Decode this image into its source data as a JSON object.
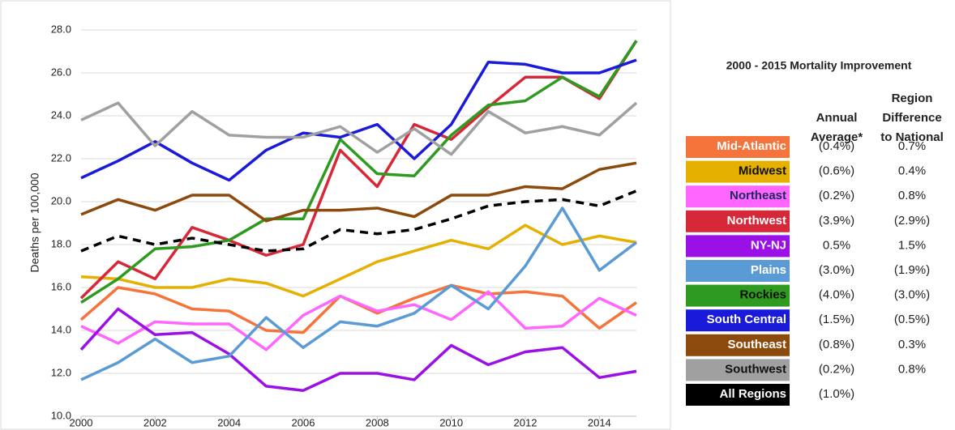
{
  "chart_data": {
    "type": "line",
    "y_label": "Deaths per 100,000",
    "x": [
      2000,
      2001,
      2002,
      2003,
      2004,
      2005,
      2006,
      2007,
      2008,
      2009,
      2010,
      2011,
      2012,
      2013,
      2014,
      2015
    ],
    "xlim": [
      2000,
      2015
    ],
    "xticks": [
      2000,
      2002,
      2004,
      2006,
      2008,
      2010,
      2012,
      2014
    ],
    "ylim": [
      10,
      28
    ],
    "yticks": [
      {
        "value": 10,
        "label": "10.0"
      },
      {
        "value": 12,
        "label": "12.0"
      },
      {
        "value": 14,
        "label": "14.0"
      },
      {
        "value": 16,
        "label": "16.0"
      },
      {
        "value": 18,
        "label": "18.0"
      },
      {
        "value": 20,
        "label": "20.0"
      },
      {
        "value": 22,
        "label": "22.0"
      },
      {
        "value": 24,
        "label": "24.0"
      },
      {
        "value": 26,
        "label": "26.0"
      },
      {
        "value": 28,
        "label": "28.0"
      }
    ],
    "grid": true,
    "series": [
      {
        "name": "Mid-Atlantic",
        "color": "#f4743b",
        "values": [
          14.5,
          16.0,
          15.7,
          15.0,
          14.9,
          14.0,
          13.9,
          15.6,
          14.8,
          15.5,
          16.1,
          15.7,
          15.8,
          15.6,
          14.1,
          15.3
        ]
      },
      {
        "name": "Midwest",
        "color": "#e6b000",
        "values": [
          16.5,
          16.4,
          16.0,
          16.0,
          16.4,
          16.2,
          15.6,
          16.4,
          17.2,
          17.7,
          18.2,
          17.8,
          18.9,
          18.0,
          18.4,
          18.1
        ]
      },
      {
        "name": "Northeast",
        "color": "#ff66ff",
        "values": [
          14.2,
          13.4,
          14.4,
          14.3,
          14.3,
          13.1,
          14.7,
          15.6,
          14.9,
          15.2,
          14.5,
          15.8,
          14.1,
          14.2,
          15.5,
          14.7
        ]
      },
      {
        "name": "Northwest",
        "color": "#d62839",
        "values": [
          15.5,
          17.2,
          16.4,
          18.8,
          18.2,
          17.5,
          18.0,
          22.4,
          20.7,
          23.6,
          22.9,
          24.4,
          25.8,
          25.8,
          24.8,
          27.5
        ]
      },
      {
        "name": "NY-NJ",
        "color": "#9b10e6",
        "values": [
          13.1,
          15.0,
          13.8,
          13.9,
          12.9,
          11.4,
          11.2,
          12.0,
          12.0,
          11.7,
          13.3,
          12.4,
          13.0,
          13.2,
          11.8,
          12.1
        ]
      },
      {
        "name": "Plains",
        "color": "#5b9bd5",
        "values": [
          11.7,
          12.5,
          13.6,
          12.5,
          12.8,
          14.6,
          13.2,
          14.4,
          14.2,
          14.8,
          16.1,
          15.0,
          17.0,
          19.7,
          16.8,
          18.1
        ]
      },
      {
        "name": "Rockies",
        "color": "#2e9a1f",
        "values": [
          15.3,
          16.4,
          17.8,
          17.9,
          18.2,
          19.2,
          19.2,
          22.9,
          21.3,
          21.2,
          23.1,
          24.5,
          24.7,
          25.8,
          24.9,
          27.5
        ]
      },
      {
        "name": "South Central",
        "color": "#1a1adb",
        "values": [
          21.1,
          21.9,
          22.8,
          21.8,
          21.0,
          22.4,
          23.2,
          23.0,
          23.6,
          22.0,
          23.6,
          26.5,
          26.4,
          26.0,
          26.0,
          26.6
        ]
      },
      {
        "name": "Southeast",
        "color": "#8c4a0c",
        "values": [
          19.4,
          20.1,
          19.6,
          20.3,
          20.3,
          19.1,
          19.6,
          19.6,
          19.7,
          19.3,
          20.3,
          20.3,
          20.7,
          20.6,
          21.5,
          21.8
        ]
      },
      {
        "name": "Southwest",
        "color": "#a0a0a0",
        "values": [
          23.8,
          24.6,
          22.6,
          24.2,
          23.1,
          23.0,
          23.0,
          23.5,
          22.3,
          23.4,
          22.2,
          24.2,
          23.2,
          23.5,
          23.1,
          24.6
        ]
      },
      {
        "name": "All Regions",
        "color": "#000000",
        "dashed": true,
        "values": [
          17.7,
          18.4,
          18.0,
          18.3,
          18.0,
          17.7,
          17.8,
          18.7,
          18.5,
          18.7,
          19.2,
          19.8,
          20.0,
          20.1,
          19.8,
          20.5
        ]
      }
    ]
  },
  "table": {
    "title": "2000 - 2015 Mortality Improvement",
    "columns": [
      [
        "Annual",
        "Average*"
      ],
      [
        "Region",
        "Difference",
        "to National"
      ]
    ],
    "rows": [
      {
        "annual": "(0.4%)",
        "difference": "0.7%"
      },
      {
        "annual": "(0.6%)",
        "difference": "0.4%"
      },
      {
        "annual": "(0.2%)",
        "difference": "0.8%"
      },
      {
        "annual": "(3.9%)",
        "difference": "(2.9%)"
      },
      {
        "annual": "0.5%",
        "difference": "1.5%"
      },
      {
        "annual": "(3.0%)",
        "difference": "(1.9%)"
      },
      {
        "annual": "(4.0%)",
        "difference": "(3.0%)"
      },
      {
        "annual": "(1.5%)",
        "difference": "(0.5%)"
      },
      {
        "annual": "(0.8%)",
        "difference": "0.3%"
      },
      {
        "annual": "(0.2%)",
        "difference": "0.8%"
      },
      {
        "annual": "(1.0%)"
      }
    ]
  }
}
